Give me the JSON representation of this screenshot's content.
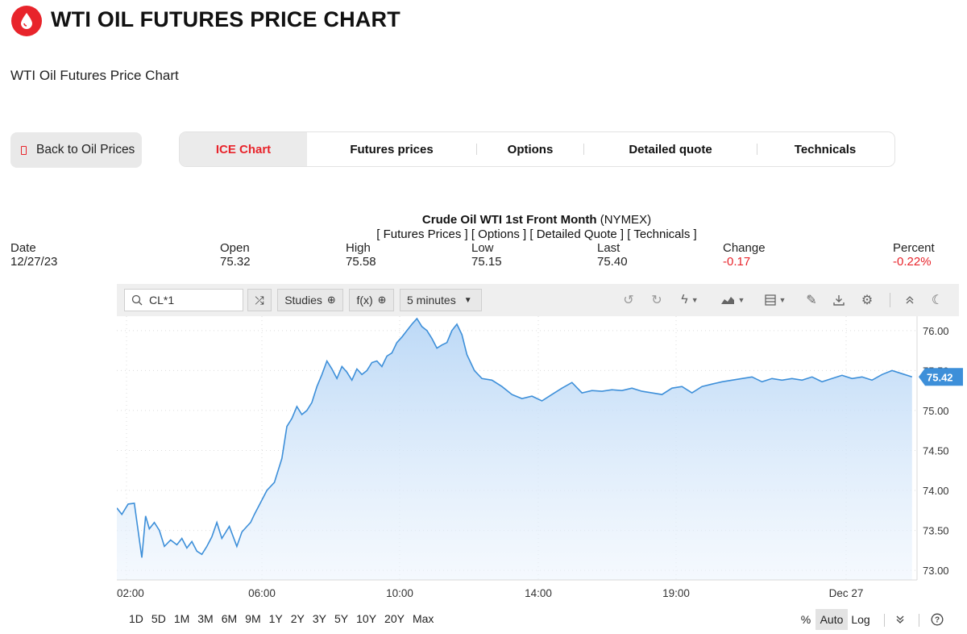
{
  "header": {
    "title": "WTI OIL FUTURES PRICE CHART",
    "subtitle": "WTI Oil Futures Price Chart"
  },
  "back_button": {
    "label": "Back to Oil Prices",
    "icon": "page-icon"
  },
  "tabs": [
    {
      "label": "ICE Chart",
      "active": true
    },
    {
      "label": "Futures prices"
    },
    {
      "label": "Options"
    },
    {
      "label": "Detailed quote"
    },
    {
      "label": "Technicals"
    }
  ],
  "instrument": {
    "name": "Crude Oil WTI 1st Front Month",
    "exchange": "(NYMEX)",
    "links": "[ Futures Prices ] [ Options ] [ Detailed Quote ] [ Technicals ]"
  },
  "quote": {
    "date_label": "Date",
    "date": "12/27/23",
    "open_label": "Open",
    "open": "75.32",
    "high_label": "High",
    "high": "75.58",
    "low_label": "Low",
    "low": "75.15",
    "last_label": "Last",
    "last": "75.40",
    "change_label": "Change",
    "change": "-0.17",
    "percent_label": "Percent",
    "percent": "-0.22%",
    "negative_color": "#e8242b"
  },
  "toolbar": {
    "symbol": "CL*1",
    "studies_label": "Studies",
    "fx_label": "f(x)",
    "interval_label": "5 minutes"
  },
  "chart_data": {
    "type": "area",
    "title": "",
    "xlabel": "",
    "ylabel": "",
    "x_tick_labels": [
      ":02:00",
      "06:00",
      "10:00",
      "14:00",
      "19:00",
      "Dec 27"
    ],
    "y_tick_labels": [
      "73.00",
      "73.50",
      "74.00",
      "74.50",
      "75.00",
      "75.50",
      "76.00"
    ],
    "ylim": [
      72.88,
      76.18
    ],
    "x_range_hours": [
      2.0,
      34.0
    ],
    "current_value_label": "75.42",
    "line_color": "#3d8fd9",
    "fill_color": "#cfe3f8",
    "grid": true,
    "x": [
      2.0,
      2.2,
      2.45,
      2.7,
      3.0,
      3.15,
      3.3,
      3.5,
      3.7,
      3.9,
      4.15,
      4.4,
      4.6,
      4.8,
      5.0,
      5.2,
      5.4,
      5.6,
      5.8,
      6.0,
      6.2,
      6.5,
      6.8,
      7.0,
      7.2,
      7.35,
      7.5,
      7.7,
      8.0,
      8.3,
      8.6,
      8.8,
      9.0,
      9.2,
      9.4,
      9.6,
      9.8,
      10.0,
      10.2,
      10.4,
      10.6,
      10.8,
      11.0,
      11.2,
      11.4,
      11.6,
      11.8,
      12.0,
      12.2,
      12.4,
      12.6,
      12.8,
      13.0,
      13.2,
      13.4,
      13.6,
      13.8,
      14.0,
      14.2,
      14.4,
      14.6,
      14.8,
      15.0,
      15.2,
      15.4,
      15.6,
      15.8,
      16.0,
      16.3,
      16.6,
      17.0,
      17.4,
      17.8,
      18.2,
      18.6,
      19.0,
      19.4,
      19.8,
      20.2,
      20.6,
      21.0,
      21.4,
      21.8,
      22.2,
      22.6,
      23.0,
      23.4,
      23.8,
      24.2,
      24.6,
      25.0,
      25.4,
      25.8,
      26.2,
      26.6,
      27.0,
      27.4,
      27.8,
      28.2,
      28.6,
      29.0,
      29.4,
      29.8,
      30.2,
      30.6,
      31.0,
      31.4,
      31.8,
      32.2,
      32.6,
      33.0,
      33.4,
      33.8
    ],
    "values": [
      73.78,
      73.7,
      73.83,
      73.84,
      73.16,
      73.68,
      73.52,
      73.6,
      73.5,
      73.3,
      73.38,
      73.32,
      73.4,
      73.28,
      73.36,
      73.24,
      73.2,
      73.3,
      73.42,
      73.6,
      73.4,
      73.55,
      73.3,
      73.48,
      73.55,
      73.6,
      73.7,
      73.82,
      74.0,
      74.1,
      74.4,
      74.8,
      74.9,
      75.05,
      74.95,
      75.0,
      75.1,
      75.3,
      75.45,
      75.62,
      75.52,
      75.4,
      75.55,
      75.48,
      75.38,
      75.52,
      75.45,
      75.5,
      75.6,
      75.62,
      75.55,
      75.68,
      75.72,
      75.85,
      75.92,
      76.0,
      76.08,
      76.15,
      76.05,
      76.0,
      75.9,
      75.78,
      75.82,
      75.85,
      76.0,
      76.08,
      75.95,
      75.7,
      75.5,
      75.4,
      75.38,
      75.3,
      75.2,
      75.15,
      75.18,
      75.12,
      75.2,
      75.28,
      75.35,
      75.22,
      75.25,
      75.24,
      75.26,
      75.25,
      75.28,
      75.24,
      75.22,
      75.2,
      75.28,
      75.3,
      75.22,
      75.3,
      75.33,
      75.36,
      75.38,
      75.4,
      75.42,
      75.36,
      75.4,
      75.38,
      75.4,
      75.38,
      75.42,
      75.36,
      75.4,
      75.44,
      75.4,
      75.42,
      75.38,
      75.45,
      75.5,
      75.46,
      75.42
    ]
  },
  "periods": [
    "1D",
    "5D",
    "1M",
    "3M",
    "6M",
    "9M",
    "1Y",
    "2Y",
    "3Y",
    "5Y",
    "10Y",
    "20Y",
    "Max"
  ],
  "scale": {
    "percent": "%",
    "auto": "Auto",
    "log": "Log"
  }
}
